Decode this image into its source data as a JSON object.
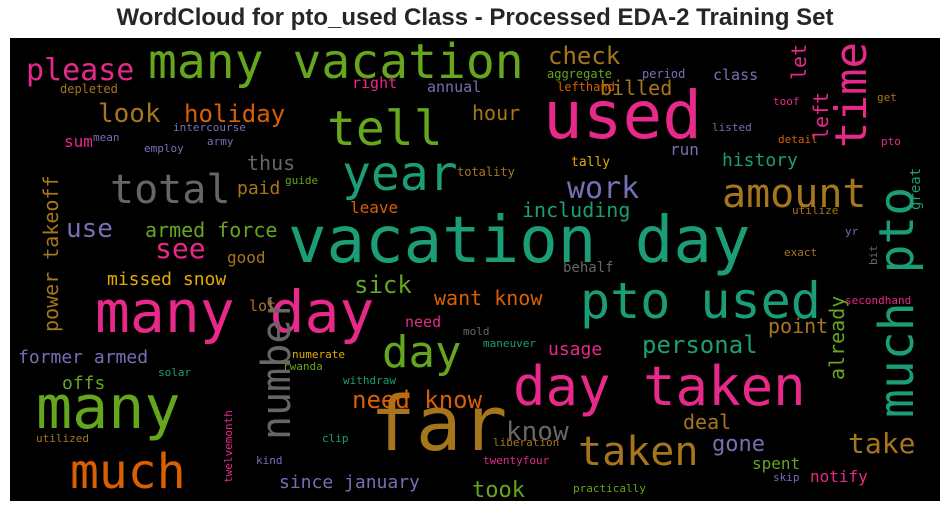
{
  "chart_data": {
    "type": "wordcloud",
    "title": "WordCloud for pto_used Class - Processed EDA-2 Training Set",
    "background": "#000000",
    "colors": {
      "pink": "#e7298a",
      "green": "#66a61e",
      "teal": "#1b9e77",
      "orange": "#d95f02",
      "gold": "#a6761d",
      "purple": "#7570b3",
      "grey": "#666666",
      "yellow": "#e6ab02"
    },
    "words": [
      {
        "text": "vacation day",
        "color": "teal"
      },
      {
        "text": "many day",
        "color": "pink"
      },
      {
        "text": "used",
        "color": "pink"
      },
      {
        "text": "far",
        "color": "gold"
      },
      {
        "text": "day taken",
        "color": "pink"
      },
      {
        "text": "pto used",
        "color": "teal"
      },
      {
        "text": "many vacation",
        "color": "green"
      },
      {
        "text": "much pto",
        "color": "teal"
      },
      {
        "text": "many",
        "color": "green"
      },
      {
        "text": "much",
        "color": "orange"
      },
      {
        "text": "tell",
        "color": "green"
      },
      {
        "text": "year",
        "color": "teal"
      },
      {
        "text": "total",
        "color": "grey"
      },
      {
        "text": "time",
        "color": "pink"
      },
      {
        "text": "amount",
        "color": "gold"
      },
      {
        "text": "number",
        "color": "grey"
      },
      {
        "text": "day",
        "color": "green"
      },
      {
        "text": "taken",
        "color": "gold"
      },
      {
        "text": "take",
        "color": "gold"
      },
      {
        "text": "please",
        "color": "pink"
      },
      {
        "text": "work",
        "color": "purple"
      },
      {
        "text": "know",
        "color": "grey"
      },
      {
        "text": "need know",
        "color": "orange"
      },
      {
        "text": "see",
        "color": "pink"
      },
      {
        "text": "use",
        "color": "purple"
      },
      {
        "text": "sick",
        "color": "green"
      },
      {
        "text": "look",
        "color": "gold"
      },
      {
        "text": "holiday",
        "color": "orange"
      },
      {
        "text": "check",
        "color": "gold"
      },
      {
        "text": "billed",
        "color": "gold"
      },
      {
        "text": "power takeoff",
        "color": "gold"
      },
      {
        "text": "armed force",
        "color": "green"
      },
      {
        "text": "personal",
        "color": "teal"
      },
      {
        "text": "want know",
        "color": "orange"
      },
      {
        "text": "including",
        "color": "teal"
      },
      {
        "text": "history",
        "color": "teal"
      },
      {
        "text": "former armed",
        "color": "purple"
      },
      {
        "text": "since january",
        "color": "purple"
      },
      {
        "text": "took",
        "color": "green"
      },
      {
        "text": "gone",
        "color": "purple"
      },
      {
        "text": "deal",
        "color": "gold"
      },
      {
        "text": "missed snow",
        "color": "yellow"
      },
      {
        "text": "let",
        "color": "pink"
      },
      {
        "text": "left",
        "color": "pink"
      },
      {
        "text": "already",
        "color": "green"
      },
      {
        "text": "point",
        "color": "gold"
      },
      {
        "text": "usage",
        "color": "pink"
      },
      {
        "text": "offs",
        "color": "green"
      },
      {
        "text": "hour",
        "color": "gold"
      },
      {
        "text": "paid",
        "color": "gold"
      },
      {
        "text": "thus",
        "color": "grey"
      },
      {
        "text": "leave",
        "color": "orange"
      },
      {
        "text": "good",
        "color": "gold"
      },
      {
        "text": "sum",
        "color": "pink"
      },
      {
        "text": "class",
        "color": "purple"
      },
      {
        "text": "notify",
        "color": "pink"
      },
      {
        "text": "spent",
        "color": "green"
      },
      {
        "text": "run",
        "color": "purple"
      },
      {
        "text": "annual",
        "color": "purple"
      },
      {
        "text": "right",
        "color": "pink"
      },
      {
        "text": "need",
        "color": "pink"
      },
      {
        "text": "lot",
        "color": "gold"
      },
      {
        "text": "behalf",
        "color": "grey"
      },
      {
        "text": "great",
        "color": "teal"
      },
      {
        "text": "tally",
        "color": "yellow"
      },
      {
        "text": "totality",
        "color": "gold"
      },
      {
        "text": "aggregate",
        "color": "green"
      },
      {
        "text": "period",
        "color": "purple"
      },
      {
        "text": "lefthand",
        "color": "orange"
      },
      {
        "text": "depleted",
        "color": "gold"
      },
      {
        "text": "intercourse",
        "color": "purple"
      },
      {
        "text": "army",
        "color": "purple"
      },
      {
        "text": "mean",
        "color": "purple"
      },
      {
        "text": "employ",
        "color": "purple"
      },
      {
        "text": "guide",
        "color": "green"
      },
      {
        "text": "listed",
        "color": "purple"
      },
      {
        "text": "detail",
        "color": "orange"
      },
      {
        "text": "toof",
        "color": "pink"
      },
      {
        "text": "get",
        "color": "gold"
      },
      {
        "text": "pto",
        "color": "pink"
      },
      {
        "text": "utilize",
        "color": "gold"
      },
      {
        "text": "yr",
        "color": "purple"
      },
      {
        "text": "exact",
        "color": "gold"
      },
      {
        "text": "bit",
        "color": "grey"
      },
      {
        "text": "secondhand",
        "color": "pink"
      },
      {
        "text": "mold",
        "color": "grey"
      },
      {
        "text": "maneuver",
        "color": "teal"
      },
      {
        "text": "numerate",
        "color": "yellow"
      },
      {
        "text": "rwanda",
        "color": "green"
      },
      {
        "text": "solar",
        "color": "teal"
      },
      {
        "text": "withdraw",
        "color": "teal"
      },
      {
        "text": "twelvemonth",
        "color": "pink"
      },
      {
        "text": "utilized",
        "color": "gold"
      },
      {
        "text": "clip",
        "color": "teal"
      },
      {
        "text": "kind",
        "color": "purple"
      },
      {
        "text": "liberation",
        "color": "gold"
      },
      {
        "text": "twentyfour",
        "color": "pink"
      },
      {
        "text": "practically",
        "color": "green"
      },
      {
        "text": "skip",
        "color": "purple"
      }
    ]
  }
}
